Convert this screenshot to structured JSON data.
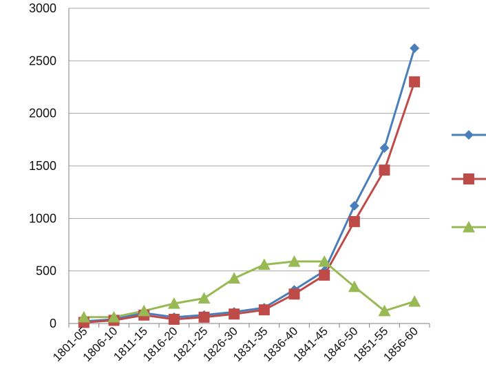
{
  "chart_data": {
    "type": "line",
    "title": "",
    "xlabel": "",
    "ylabel": "",
    "ylim": [
      0,
      3000
    ],
    "y_ticks": [
      0,
      500,
      1000,
      1500,
      2000,
      2500,
      3000
    ],
    "y_tick_labels": [
      "0",
      "500",
      "1000",
      "1500",
      "2000",
      "2500",
      "3000"
    ],
    "grid": true,
    "legend_placement": "right",
    "categories": [
      "1801-05",
      "1806-10",
      "1811-15",
      "1816-20",
      "1821-25",
      "1826-30",
      "1831-35",
      "1836-40",
      "1841-45",
      "1846-50",
      "1851-55",
      "1856-60"
    ],
    "series": [
      {
        "color": "#4a7ebb",
        "marker": "diamond",
        "values": [
          20,
          40,
          100,
          60,
          80,
          110,
          150,
          320,
          500,
          1120,
          1670,
          2620
        ]
      },
      {
        "color": "#be4b48",
        "marker": "square",
        "values": [
          10,
          30,
          80,
          40,
          60,
          90,
          130,
          280,
          460,
          970,
          1460,
          2300
        ]
      },
      {
        "color": "#98b954",
        "marker": "triangle",
        "values": [
          60,
          60,
          120,
          190,
          240,
          430,
          560,
          590,
          590,
          350,
          120,
          210
        ]
      }
    ]
  }
}
